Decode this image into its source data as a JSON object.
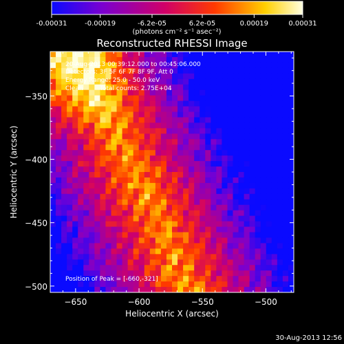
{
  "colorbar": {
    "tick_labels": [
      "-0.00031",
      "-0.00019",
      "-6.2e-05",
      "6.2e-05",
      "0.00019",
      "0.00031"
    ],
    "tick_values": [
      -0.00031,
      -0.00019,
      -6.2e-05,
      6.2e-05,
      0.00019,
      0.00031
    ],
    "range": [
      -0.00031,
      0.00031
    ],
    "units_label": "(photons cm⁻² s⁻¹ asec⁻²)",
    "colors": [
      "#0a0aff",
      "#7a00d0",
      "#d00068",
      "#ff3a00",
      "#ffd000",
      "#ffffe0"
    ]
  },
  "chart_data": {
    "type": "heatmap",
    "title": "Reconstructed RHESSI Image",
    "xlabel": "Heliocentric X (arcsec)",
    "ylabel": "Heliocentric Y (arcsec)",
    "xlim": [
      -670,
      -478
    ],
    "ylim": [
      -505,
      -315
    ],
    "xticks": [
      -650,
      -600,
      -550,
      -500
    ],
    "yticks": [
      -350,
      -400,
      -450,
      -500
    ],
    "xtick_labels": [
      "−650",
      "−600",
      "−550",
      "−500"
    ],
    "ytick_labels": [
      "−350",
      "−400",
      "−450",
      "−500"
    ],
    "annotations": {
      "time": "20-Aug-2013 00:39:12.000 to 00:45:06.000",
      "detectors": "Detectors: 3F 5F 6F 7F 8F 9F, Att 0",
      "energy": "Energy Range: 25.0 - 50.0 keV",
      "algorithm": "Clean",
      "counts": "Total counts: 2.75E+04",
      "peak": "Position of Peak = [-660,-321]"
    }
  },
  "footer": {
    "timestamp": "30-Aug-2013 12:56"
  }
}
